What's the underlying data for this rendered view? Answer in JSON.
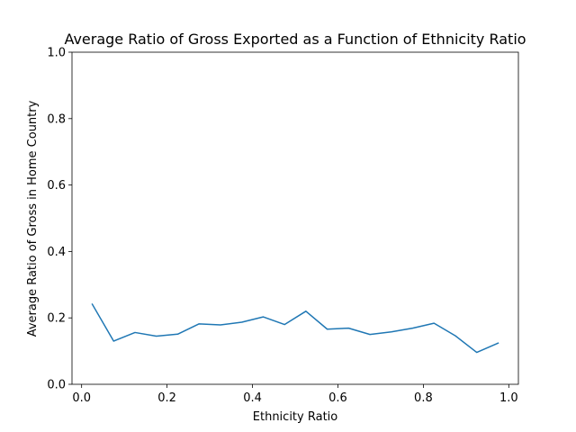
{
  "chart_data": {
    "type": "line",
    "title": "Average Ratio of Gross Exported as a Function of Ethnicity Ratio",
    "xlabel": "Ethnicity Ratio",
    "ylabel": "Average Ratio of Gross in Home Country",
    "xlim": [
      -0.0225,
      1.0225
    ],
    "ylim": [
      0.0,
      1.0
    ],
    "xticks": [
      0.0,
      0.2,
      0.4,
      0.6,
      0.8,
      1.0
    ],
    "xtick_labels": [
      "0.0",
      "0.2",
      "0.4",
      "0.6",
      "0.8",
      "1.0"
    ],
    "yticks": [
      0.0,
      0.2,
      0.4,
      0.6,
      0.8,
      1.0
    ],
    "ytick_labels": [
      "0.0",
      "0.2",
      "0.4",
      "0.6",
      "0.8",
      "1.0"
    ],
    "grid": false,
    "legend": "none",
    "series": [
      {
        "color": "#1f77b4",
        "x": [
          0.025,
          0.075,
          0.125,
          0.175,
          0.225,
          0.275,
          0.325,
          0.375,
          0.425,
          0.475,
          0.525,
          0.575,
          0.625,
          0.675,
          0.725,
          0.775,
          0.825,
          0.875,
          0.925,
          0.975
        ],
        "y": [
          0.241,
          0.13,
          0.156,
          0.145,
          0.151,
          0.182,
          0.179,
          0.187,
          0.203,
          0.18,
          0.22,
          0.166,
          0.169,
          0.15,
          0.158,
          0.169,
          0.184,
          0.146,
          0.096,
          0.124
        ]
      }
    ]
  }
}
